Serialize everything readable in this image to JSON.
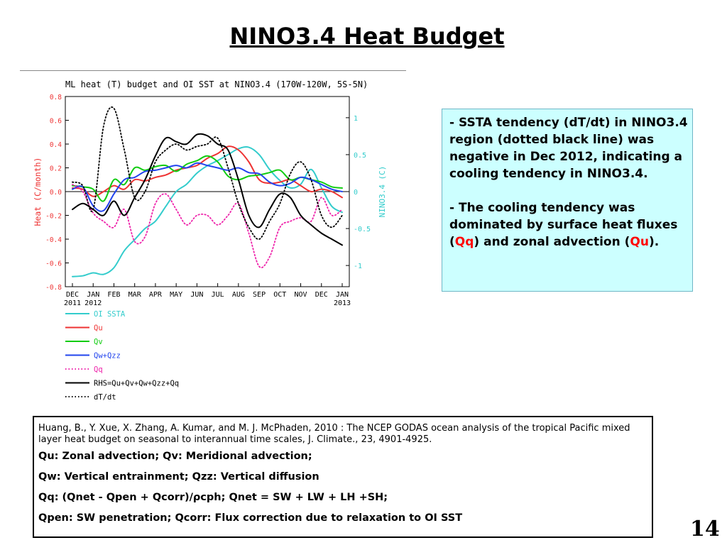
{
  "slide": {
    "title": "NINO3.4 Heat Budget",
    "page_number": "14"
  },
  "notes": {
    "bullet1": {
      "dash": "- ",
      "text": "SSTA tendency (dT/dt) in NINO3.4 region (dotted black line) was negative in Dec 2012, indicating a cooling tendency in NINO3.4."
    },
    "bullet2": {
      "dash": "- ",
      "pre": "The cooling tendency was dominated by surface heat fluxes (",
      "hl1": "Qq",
      "mid": ") and zonal advection (",
      "hl2": "Qu",
      "post": ")."
    }
  },
  "reference": {
    "citation": "Huang, B., Y. Xue, X. Zhang, A. Kumar, and M. J. McPhaden, 2010 : The NCEP GODAS ocean analysis of the tropical Pacific mixed layer heat budget on seasonal to interannual time scales,  J. Climate., 23, 4901-4925.",
    "lines": [
      "Qu: Zonal advection;    Qv: Meridional advection;",
      "Qw: Vertical entrainment;  Qzz: Vertical diffusion",
      "Qq: (Qnet - Qpen + Qcorr)/ρcph;  Qnet = SW + LW + LH +SH;",
      "Qpen: SW penetration; Qcorr: Flux correction due to relaxation to OI SST"
    ]
  },
  "colors": {
    "oi_ssta": "#33cccc",
    "qu": "#ee3333",
    "qv": "#11cc11",
    "qwqzz": "#2244ee",
    "qq": "#ee22aa",
    "rhs": "#000000",
    "dtdt": "#000000"
  },
  "chart_data": {
    "type": "line",
    "title": "ML heat (T) budget and OI SST at NINO3.4 (170W-120W, 5S-5N)",
    "ylabel": "Heat (C/month)",
    "y2label": "NINO3.4 (C)",
    "ylim": [
      -0.8,
      0.8
    ],
    "y2lim": [
      -1.287,
      1.287
    ],
    "yticks": [
      "0.8",
      "0.6",
      "0.4",
      "0.2",
      "0.0",
      "-0.2",
      "-0.4",
      "-0.6",
      "-0.8"
    ],
    "y2ticks": [
      "1",
      "0.5",
      "0",
      "-0.5",
      "-1"
    ],
    "x_labels": [
      {
        "top": "DEC",
        "bottom": "2011"
      },
      {
        "top": "JAN",
        "bottom": "2012"
      },
      {
        "top": "FEB",
        "bottom": ""
      },
      {
        "top": "MAR",
        "bottom": ""
      },
      {
        "top": "APR",
        "bottom": ""
      },
      {
        "top": "MAY",
        "bottom": ""
      },
      {
        "top": "JUN",
        "bottom": ""
      },
      {
        "top": "JUL",
        "bottom": ""
      },
      {
        "top": "AUG",
        "bottom": ""
      },
      {
        "top": "SEP",
        "bottom": ""
      },
      {
        "top": "OCT",
        "bottom": ""
      },
      {
        "top": "NOV",
        "bottom": ""
      },
      {
        "top": "DEC",
        "bottom": ""
      },
      {
        "top": "JAN",
        "bottom": "2013"
      }
    ],
    "x_month_index": [
      0,
      0.5,
      1,
      1.5,
      2,
      2.5,
      3,
      3.5,
      4,
      4.5,
      5,
      5.5,
      6,
      6.5,
      7,
      7.5,
      8,
      8.5,
      9,
      9.5,
      10,
      10.5,
      11,
      11.5,
      12,
      12.5,
      13
    ],
    "legend_placement": "below",
    "grid": false,
    "series": [
      {
        "name": "OI SSTA",
        "key": "oi_ssta",
        "axis": "right",
        "style": "solid",
        "values": [
          -1.15,
          -1.14,
          -1.1,
          -1.12,
          -1.03,
          -0.8,
          -0.65,
          -0.5,
          -0.4,
          -0.2,
          0,
          0.1,
          0.25,
          0.35,
          0.42,
          0.5,
          0.58,
          0.6,
          0.5,
          0.3,
          0.15,
          0.05,
          0.1,
          0.3,
          0.05,
          -0.2,
          -0.28
        ]
      },
      {
        "name": "Qu",
        "key": "qu",
        "axis": "left",
        "style": "solid",
        "values": [
          0.03,
          0.02,
          -0.04,
          0.0,
          0.05,
          0.02,
          0.1,
          0.09,
          0.12,
          0.14,
          0.18,
          0.2,
          0.22,
          0.28,
          0.32,
          0.38,
          0.35,
          0.25,
          0.1,
          0.07,
          0.08,
          0.1,
          0.05,
          0.0,
          0.02,
          0.0,
          -0.05
        ]
      },
      {
        "name": "Qv",
        "key": "qv",
        "axis": "left",
        "style": "solid",
        "values": [
          0.05,
          0.04,
          0.02,
          -0.08,
          0.1,
          0.06,
          0.2,
          0.18,
          0.21,
          0.22,
          0.17,
          0.23,
          0.26,
          0.3,
          0.25,
          0.13,
          0.1,
          0.13,
          0.14,
          0.16,
          0.18,
          0.1,
          0.12,
          0.1,
          0.08,
          0.04,
          0.03
        ]
      },
      {
        "name": "Qw+Qzz",
        "key": "qwqzz",
        "axis": "left",
        "style": "solid",
        "values": [
          0.02,
          0.04,
          -0.12,
          -0.16,
          -0.02,
          0.1,
          0.12,
          0.17,
          0.18,
          0.2,
          0.22,
          0.2,
          0.24,
          0.22,
          0.2,
          0.18,
          0.2,
          0.16,
          0.15,
          0.08,
          0.05,
          0.07,
          0.12,
          0.1,
          0.06,
          0.02,
          0.0
        ]
      },
      {
        "name": "Qq",
        "key": "qq",
        "axis": "left",
        "style": "dotted",
        "values": [
          0.06,
          0.0,
          -0.18,
          -0.25,
          -0.3,
          -0.15,
          -0.42,
          -0.38,
          -0.1,
          -0.02,
          -0.15,
          -0.28,
          -0.2,
          -0.2,
          -0.28,
          -0.2,
          -0.1,
          -0.35,
          -0.63,
          -0.55,
          -0.3,
          -0.25,
          -0.22,
          -0.25,
          -0.05,
          -0.2,
          -0.15
        ]
      },
      {
        "name": "RHS=Qu+Qv+Qw+Qzz+Qq",
        "key": "rhs",
        "axis": "left",
        "style": "solid",
        "values": [
          -0.15,
          -0.1,
          -0.15,
          -0.2,
          -0.08,
          -0.2,
          -0.05,
          0.1,
          0.3,
          0.45,
          0.42,
          0.4,
          0.48,
          0.47,
          0.4,
          0.35,
          0.1,
          -0.2,
          -0.3,
          -0.15,
          -0.02,
          -0.05,
          -0.2,
          -0.28,
          -0.35,
          -0.4,
          -0.45
        ]
      },
      {
        "name": "dT/dt",
        "key": "dtdt",
        "axis": "left",
        "style": "dotted",
        "values": [
          0.08,
          0.05,
          -0.15,
          0.55,
          0.7,
          0.35,
          -0.05,
          0.0,
          0.25,
          0.35,
          0.4,
          0.35,
          0.38,
          0.4,
          0.45,
          0.2,
          -0.1,
          -0.3,
          -0.4,
          -0.25,
          -0.1,
          0.15,
          0.25,
          0.1,
          -0.2,
          -0.3,
          -0.2
        ]
      }
    ]
  }
}
